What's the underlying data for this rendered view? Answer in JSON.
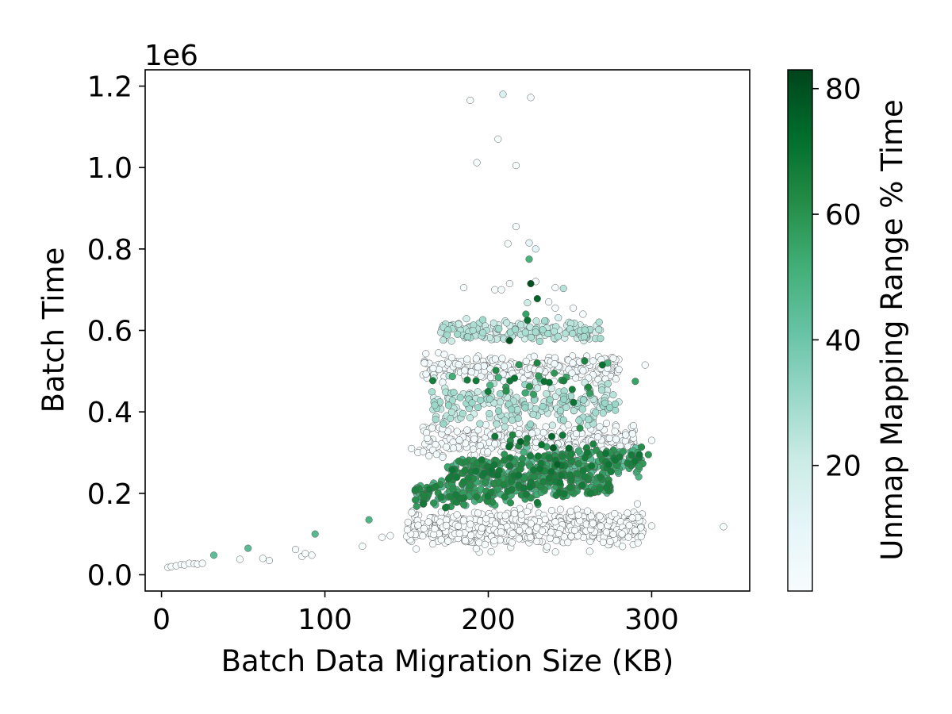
{
  "chart_data": {
    "type": "scatter",
    "title": "",
    "xlabel": "Batch Data Migration Size (KB)",
    "ylabel": "Batch Time",
    "y_scale_label": "1e6",
    "xlim": [
      -10,
      360
    ],
    "ylim": [
      -40000,
      1240000
    ],
    "x_ticks": [
      0,
      100,
      200,
      300
    ],
    "x_tick_labels": [
      "0",
      "100",
      "200",
      "300"
    ],
    "y_ticks": [
      0,
      200000,
      400000,
      600000,
      800000,
      1000000,
      1200000
    ],
    "y_tick_labels": [
      "0.0",
      "0.2",
      "0.4",
      "0.6",
      "0.8",
      "1.0",
      "1.2"
    ],
    "grid": false,
    "colorbar": {
      "label": "Unmap Mapping Range % Time",
      "range": [
        0,
        83
      ],
      "ticks": [
        20,
        40,
        60,
        80
      ],
      "tick_labels": [
        "20",
        "40",
        "60",
        "80"
      ],
      "colors": [
        "#f7fcfd",
        "#e5f5f9",
        "#ccece6",
        "#99d8c9",
        "#66c2a4",
        "#41ae76",
        "#238b45",
        "#006d2c",
        "#00441b"
      ]
    },
    "marker_edge_color": "#555555",
    "points": [
      [
        4,
        18000,
        0
      ],
      [
        6,
        20000,
        0
      ],
      [
        9,
        22000,
        0
      ],
      [
        12,
        25000,
        0
      ],
      [
        14,
        24000,
        0
      ],
      [
        17,
        28000,
        0
      ],
      [
        20,
        27000,
        0
      ],
      [
        22,
        26000,
        0
      ],
      [
        25,
        28000,
        0
      ],
      [
        32,
        48000,
        44
      ],
      [
        48,
        38000,
        0
      ],
      [
        53,
        65000,
        45
      ],
      [
        62,
        40000,
        0
      ],
      [
        66,
        35000,
        0
      ],
      [
        82,
        62000,
        0
      ],
      [
        86,
        45000,
        0
      ],
      [
        88,
        52000,
        0
      ],
      [
        92,
        48000,
        0
      ],
      [
        94,
        100000,
        46
      ],
      [
        123,
        70000,
        0
      ],
      [
        127,
        135000,
        48
      ],
      [
        135,
        92000,
        0
      ],
      [
        140,
        96000,
        0
      ],
      [
        344,
        118000,
        0
      ],
      [
        300,
        120000,
        0
      ],
      [
        298,
        295000,
        58
      ],
      [
        300,
        330000,
        0
      ],
      [
        296,
        515000,
        0
      ],
      [
        290,
        475000,
        55
      ],
      [
        209,
        1180000,
        15
      ],
      [
        189,
        1165000,
        0
      ],
      [
        226,
        1172000,
        0
      ],
      [
        206,
        1070000,
        0
      ],
      [
        193,
        1012000,
        0
      ],
      [
        217,
        1005000,
        0
      ],
      [
        217,
        855000,
        0
      ],
      [
        212,
        813000,
        0
      ],
      [
        225,
        815000,
        10
      ],
      [
        229,
        800000,
        12
      ],
      [
        225,
        775000,
        50
      ],
      [
        226,
        715000,
        80
      ],
      [
        230,
        678000,
        75
      ],
      [
        224,
        668000,
        20
      ],
      [
        223,
        640000,
        55
      ],
      [
        224,
        625000,
        70
      ],
      [
        213,
        575000,
        80
      ],
      [
        185,
        705000,
        0
      ],
      [
        204,
        700000,
        0
      ],
      [
        208,
        700000,
        0
      ],
      [
        213,
        715000,
        0
      ],
      [
        229,
        720000,
        0
      ],
      [
        241,
        705000,
        0
      ],
      [
        246,
        703000,
        25
      ],
      [
        237,
        670000,
        0
      ],
      [
        252,
        655000,
        0
      ],
      [
        241,
        655000,
        0
      ],
      [
        258,
        640000,
        0
      ],
      [
        227,
        395000,
        0
      ],
      [
        216,
        395000,
        0
      ],
      [
        248,
        240000,
        0
      ],
      [
        233,
        232000,
        0
      ],
      [
        237,
        235000,
        0
      ],
      [
        181,
        250000,
        40
      ],
      [
        158,
        305000,
        0
      ],
      [
        153,
        310000,
        0
      ],
      [
        157,
        300000,
        0
      ],
      [
        259,
        525000,
        65
      ],
      [
        273,
        520000,
        50
      ]
    ],
    "clusters": [
      {
        "x_range": [
          150,
          295
        ],
        "y_center": 115000,
        "y_spread": 45000,
        "count": 620,
        "pct_range": [
          0,
          0
        ],
        "slope": 0
      },
      {
        "x_range": [
          155,
          275
        ],
        "y_center": 210000,
        "y_spread": 40000,
        "count": 320,
        "pct_range": [
          42,
          68
        ],
        "slope": 250
      },
      {
        "x_range": [
          175,
          295
        ],
        "y_center": 265000,
        "y_spread": 40000,
        "count": 380,
        "pct_range": [
          40,
          70
        ],
        "slope": 300
      },
      {
        "x_range": [
          160,
          290
        ],
        "y_center": 330000,
        "y_spread": 40000,
        "count": 320,
        "pct_range": [
          0,
          4
        ],
        "slope": 0
      },
      {
        "x_range": [
          165,
          280
        ],
        "y_center": 420000,
        "y_spread": 55000,
        "count": 240,
        "pct_range": [
          15,
          32
        ],
        "slope": 0
      },
      {
        "x_range": [
          160,
          280
        ],
        "y_center": 510000,
        "y_spread": 35000,
        "count": 280,
        "pct_range": [
          0,
          4
        ],
        "slope": 0
      },
      {
        "x_range": [
          170,
          270
        ],
        "y_center": 600000,
        "y_spread": 25000,
        "count": 190,
        "pct_range": [
          15,
          30
        ],
        "slope": 0
      },
      {
        "x_range": [
          200,
          265
        ],
        "y_center": 315000,
        "y_spread": 45000,
        "count": 25,
        "pct_range": [
          55,
          78
        ],
        "slope": 0
      },
      {
        "x_range": [
          165,
          270
        ],
        "y_center": 470000,
        "y_spread": 70000,
        "count": 30,
        "pct_range": [
          48,
          72
        ],
        "slope": 0
      }
    ]
  }
}
